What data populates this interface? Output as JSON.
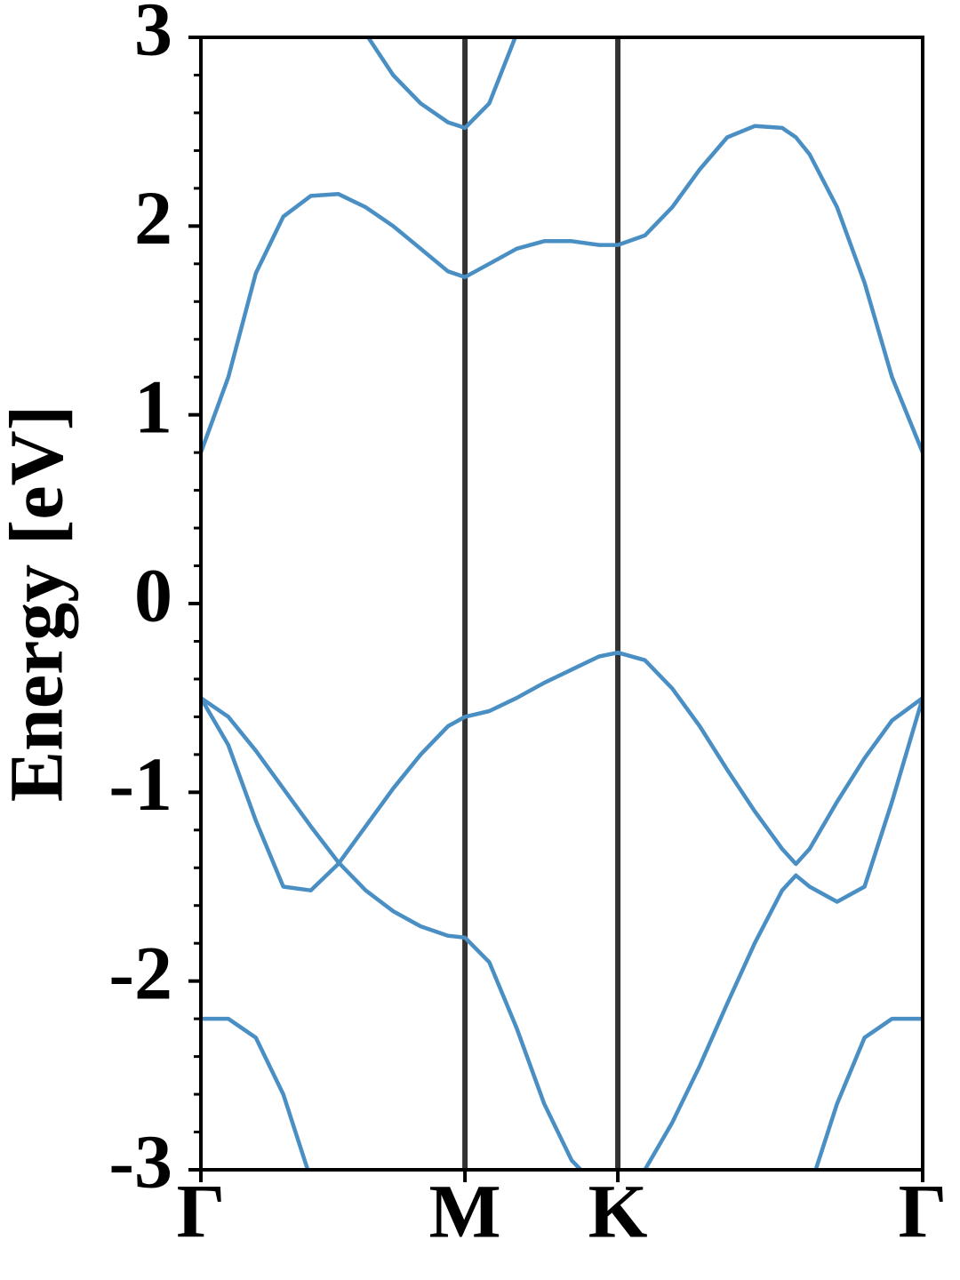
{
  "chart_data": {
    "type": "line",
    "y_label": "Energy [eV]",
    "x": [
      0,
      0.06,
      0.12,
      0.18,
      0.24,
      0.3,
      0.36,
      0.42,
      0.48,
      0.54,
      0.577,
      0.63,
      0.69,
      0.75,
      0.81,
      0.87,
      0.911,
      0.97,
      1.03,
      1.09,
      1.15,
      1.21,
      1.27,
      1.3,
      1.33,
      1.39,
      1.45,
      1.51,
      1.577
    ],
    "series": [
      {
        "color": "#4a8fc4",
        "values": [
          0.8,
          1.2,
          1.75,
          2.05,
          2.16,
          2.17,
          2.1,
          2.0,
          1.88,
          1.76,
          1.73,
          1.8,
          1.88,
          1.92,
          1.92,
          1.9,
          1.9,
          1.95,
          2.1,
          2.3,
          2.47,
          2.53,
          2.52,
          2.47,
          2.38,
          2.1,
          1.7,
          1.2,
          0.8
        ]
      },
      {
        "color": "#4a8fc4",
        "values": [
          null,
          null,
          null,
          null,
          null,
          null,
          3.02,
          2.8,
          2.65,
          2.55,
          2.52,
          2.65,
          3.02,
          3.4,
          null,
          null,
          null,
          null,
          null,
          null,
          null,
          null,
          null,
          null,
          null,
          null,
          null,
          null,
          null
        ]
      },
      {
        "color": "#4a8fc4",
        "values": [
          -0.5,
          -0.75,
          -1.15,
          -1.5,
          -1.52,
          -1.38,
          -1.18,
          -0.98,
          -0.8,
          -0.65,
          -0.6,
          -0.57,
          -0.5,
          -0.42,
          -0.35,
          -0.28,
          -0.26,
          -0.3,
          -0.45,
          -0.65,
          -0.88,
          -1.1,
          -1.3,
          -1.38,
          -1.3,
          -1.05,
          -0.82,
          -0.62,
          -0.5
        ]
      },
      {
        "color": "#4a8fc4",
        "values": [
          -0.5,
          -0.6,
          -0.78,
          -0.98,
          -1.18,
          -1.37,
          -1.52,
          -1.63,
          -1.71,
          -1.76,
          -1.77,
          -1.9,
          -2.25,
          -2.65,
          -2.95,
          -3.1,
          -3.15,
          -3.0,
          -2.75,
          -2.45,
          -2.12,
          -1.8,
          -1.52,
          -1.44,
          -1.5,
          -1.58,
          -1.5,
          -1.05,
          -0.5
        ]
      },
      {
        "color": "#4a8fc4",
        "values": [
          -2.2,
          -2.2,
          -2.3,
          -2.6,
          -3.05,
          null,
          null,
          null,
          null,
          null,
          null,
          null,
          null,
          null,
          null,
          null,
          null,
          null,
          null,
          null,
          null,
          null,
          null,
          null,
          -3.1,
          -2.65,
          -2.3,
          -2.2,
          -2.2
        ]
      }
    ],
    "xlim": [
      0,
      1.577
    ],
    "xticks": [
      {
        "value": 0,
        "label": "Γ"
      },
      {
        "value": 0.577,
        "label": "M"
      },
      {
        "value": 0.911,
        "label": "K"
      },
      {
        "value": 1.577,
        "label": "Γ"
      }
    ],
    "ylim": [
      -3,
      3
    ],
    "yticks": [
      -3,
      -2,
      -1,
      0,
      1,
      2,
      3
    ],
    "yminorticks": [
      -2.8,
      -2.6,
      -2.4,
      -2.2,
      -1.8,
      -1.6,
      -1.4,
      -1.2,
      -0.8,
      -0.6,
      -0.4,
      -0.2,
      0.2,
      0.4,
      0.6,
      0.8,
      1.2,
      1.4,
      1.6,
      1.8,
      2.2,
      2.4,
      2.6,
      2.8
    ],
    "vline_color": "#333333"
  }
}
